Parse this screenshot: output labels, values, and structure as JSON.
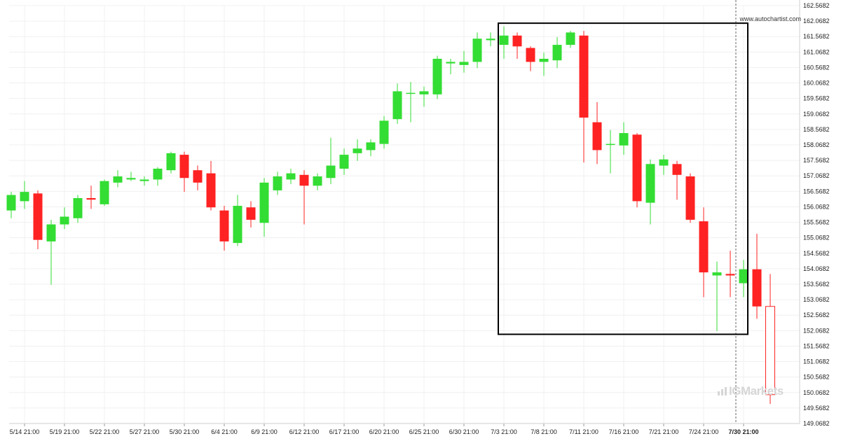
{
  "watermark": {
    "url": "www.autochartist.com",
    "brand_prefix": "IG",
    "brand_suffix": "Markets"
  },
  "colors": {
    "up": "#33dd33",
    "down": "#ff2222",
    "pattern_box": "#000000",
    "grid": "#f0f0f0",
    "last_candle_outline": "#ff2222",
    "marker_line": "#444444"
  },
  "chart_data": {
    "type": "candlestick",
    "title": "",
    "xlabel": "",
    "ylabel": "",
    "ylim": [
      149.0682,
      162.5682
    ],
    "y_ticks": [
      "162.5682",
      "162.0682",
      "161.5682",
      "161.0682",
      "160.5682",
      "160.0682",
      "159.5682",
      "159.0682",
      "158.5682",
      "158.0682",
      "157.5682",
      "157.0682",
      "156.5682",
      "156.0682",
      "155.5682",
      "155.0682",
      "154.5682",
      "154.0682",
      "153.5682",
      "153.0682",
      "152.5682",
      "152.0682",
      "151.5682",
      "151.0682",
      "150.5682",
      "150.0682",
      "149.5682",
      "149.0682"
    ],
    "x_ticks": [
      {
        "index": 1,
        "label": "5/14 21:00"
      },
      {
        "index": 4,
        "label": "5/19 21:00"
      },
      {
        "index": 7,
        "label": "5/22 21:00"
      },
      {
        "index": 10,
        "label": "5/27 21:00"
      },
      {
        "index": 13,
        "label": "5/30 21:00"
      },
      {
        "index": 16,
        "label": "6/4 21:00"
      },
      {
        "index": 19,
        "label": "6/9 21:00"
      },
      {
        "index": 22,
        "label": "6/12 21:00"
      },
      {
        "index": 25,
        "label": "6/17 21:00"
      },
      {
        "index": 28,
        "label": "6/20 21:00"
      },
      {
        "index": 31,
        "label": "6/25 21:00"
      },
      {
        "index": 34,
        "label": "6/30 21:00"
      },
      {
        "index": 37,
        "label": "7/3 21:00"
      },
      {
        "index": 40,
        "label": "7/8 21:00"
      },
      {
        "index": 43,
        "label": "7/11 21:00"
      },
      {
        "index": 46,
        "label": "7/16 21:00"
      },
      {
        "index": 49,
        "label": "7/21 21:00"
      },
      {
        "index": 52,
        "label": "7/24 21:00"
      },
      {
        "index": 55,
        "label": "7/30 21:00",
        "bold": true
      }
    ],
    "candles": [
      {
        "o": 155.95,
        "h": 156.55,
        "l": 155.7,
        "c": 156.45
      },
      {
        "o": 156.25,
        "h": 156.9,
        "l": 156.0,
        "c": 156.55
      },
      {
        "o": 156.5,
        "h": 156.6,
        "l": 154.7,
        "c": 155.0
      },
      {
        "o": 154.95,
        "h": 155.65,
        "l": 153.55,
        "c": 155.5
      },
      {
        "o": 155.5,
        "h": 156.05,
        "l": 155.35,
        "c": 155.75
      },
      {
        "o": 155.7,
        "h": 156.45,
        "l": 155.55,
        "c": 156.35
      },
      {
        "o": 156.35,
        "h": 156.75,
        "l": 156.0,
        "c": 156.3
      },
      {
        "o": 156.15,
        "h": 156.95,
        "l": 156.1,
        "c": 156.9
      },
      {
        "o": 156.85,
        "h": 157.25,
        "l": 156.7,
        "c": 157.05
      },
      {
        "o": 156.95,
        "h": 157.2,
        "l": 156.9,
        "c": 157.0
      },
      {
        "o": 156.9,
        "h": 157.05,
        "l": 156.75,
        "c": 156.95
      },
      {
        "o": 156.95,
        "h": 157.35,
        "l": 156.75,
        "c": 157.3
      },
      {
        "o": 157.25,
        "h": 157.85,
        "l": 157.15,
        "c": 157.8
      },
      {
        "o": 157.75,
        "h": 157.85,
        "l": 156.55,
        "c": 157.0
      },
      {
        "o": 157.25,
        "h": 157.4,
        "l": 156.6,
        "c": 156.85
      },
      {
        "o": 157.15,
        "h": 157.55,
        "l": 155.95,
        "c": 156.05
      },
      {
        "o": 155.95,
        "h": 156.1,
        "l": 154.65,
        "c": 154.95
      },
      {
        "o": 154.9,
        "h": 156.45,
        "l": 154.8,
        "c": 156.1
      },
      {
        "o": 156.05,
        "h": 156.25,
        "l": 155.4,
        "c": 155.65
      },
      {
        "o": 155.55,
        "h": 157.0,
        "l": 155.1,
        "c": 156.85
      },
      {
        "o": 156.6,
        "h": 157.2,
        "l": 156.45,
        "c": 157.05
      },
      {
        "o": 156.95,
        "h": 157.3,
        "l": 156.8,
        "c": 157.15
      },
      {
        "o": 157.1,
        "h": 157.25,
        "l": 155.5,
        "c": 156.75
      },
      {
        "o": 156.75,
        "h": 157.15,
        "l": 156.6,
        "c": 157.05
      },
      {
        "o": 157.0,
        "h": 158.3,
        "l": 156.8,
        "c": 157.4
      },
      {
        "o": 157.3,
        "h": 157.95,
        "l": 157.1,
        "c": 157.75
      },
      {
        "o": 157.8,
        "h": 158.25,
        "l": 157.55,
        "c": 157.95
      },
      {
        "o": 157.9,
        "h": 158.25,
        "l": 157.7,
        "c": 158.15
      },
      {
        "o": 158.1,
        "h": 159.0,
        "l": 157.95,
        "c": 158.85
      },
      {
        "o": 158.9,
        "h": 160.05,
        "l": 158.75,
        "c": 159.8
      },
      {
        "o": 159.75,
        "h": 160.1,
        "l": 158.8,
        "c": 159.75
      },
      {
        "o": 159.7,
        "h": 159.95,
        "l": 159.3,
        "c": 159.8
      },
      {
        "o": 159.7,
        "h": 160.95,
        "l": 159.55,
        "c": 160.85
      },
      {
        "o": 160.7,
        "h": 160.85,
        "l": 160.35,
        "c": 160.75
      },
      {
        "o": 160.65,
        "h": 161.1,
        "l": 160.4,
        "c": 160.75
      },
      {
        "o": 160.75,
        "h": 161.7,
        "l": 160.55,
        "c": 161.5
      },
      {
        "o": 161.45,
        "h": 161.7,
        "l": 161.25,
        "c": 161.5
      },
      {
        "o": 161.3,
        "h": 161.9,
        "l": 160.85,
        "c": 161.6
      },
      {
        "o": 161.6,
        "h": 161.7,
        "l": 160.85,
        "c": 161.25
      },
      {
        "o": 161.2,
        "h": 161.25,
        "l": 160.45,
        "c": 160.75
      },
      {
        "o": 160.75,
        "h": 161.05,
        "l": 160.3,
        "c": 160.85
      },
      {
        "o": 160.8,
        "h": 161.55,
        "l": 160.55,
        "c": 161.3
      },
      {
        "o": 161.3,
        "h": 161.75,
        "l": 161.2,
        "c": 161.7
      },
      {
        "o": 161.6,
        "h": 161.75,
        "l": 157.5,
        "c": 158.95
      },
      {
        "o": 158.8,
        "h": 159.45,
        "l": 157.45,
        "c": 157.9
      },
      {
        "o": 158.1,
        "h": 158.55,
        "l": 157.15,
        "c": 158.1
      },
      {
        "o": 158.05,
        "h": 158.8,
        "l": 157.75,
        "c": 158.45
      },
      {
        "o": 158.4,
        "h": 158.45,
        "l": 156.05,
        "c": 156.25
      },
      {
        "o": 156.2,
        "h": 157.6,
        "l": 155.5,
        "c": 157.45
      },
      {
        "o": 157.4,
        "h": 157.75,
        "l": 157.1,
        "c": 157.6
      },
      {
        "o": 157.45,
        "h": 157.55,
        "l": 156.3,
        "c": 157.1
      },
      {
        "o": 157.05,
        "h": 157.15,
        "l": 155.55,
        "c": 155.65
      },
      {
        "o": 155.6,
        "h": 156.05,
        "l": 153.15,
        "c": 153.95
      },
      {
        "o": 153.85,
        "h": 154.3,
        "l": 152.05,
        "c": 153.95
      },
      {
        "o": 153.9,
        "h": 154.65,
        "l": 153.15,
        "c": 153.85
      },
      {
        "o": 153.6,
        "h": 154.35,
        "l": 153.15,
        "c": 154.05
      },
      {
        "o": 154.05,
        "h": 155.2,
        "l": 152.45,
        "c": 152.85
      },
      {
        "o": 152.85,
        "h": 153.9,
        "l": 149.7,
        "c": 150.0
      }
    ],
    "pattern_box": {
      "start_index": 37,
      "end_index": 55,
      "high": 162.0,
      "low": 151.95
    }
  }
}
